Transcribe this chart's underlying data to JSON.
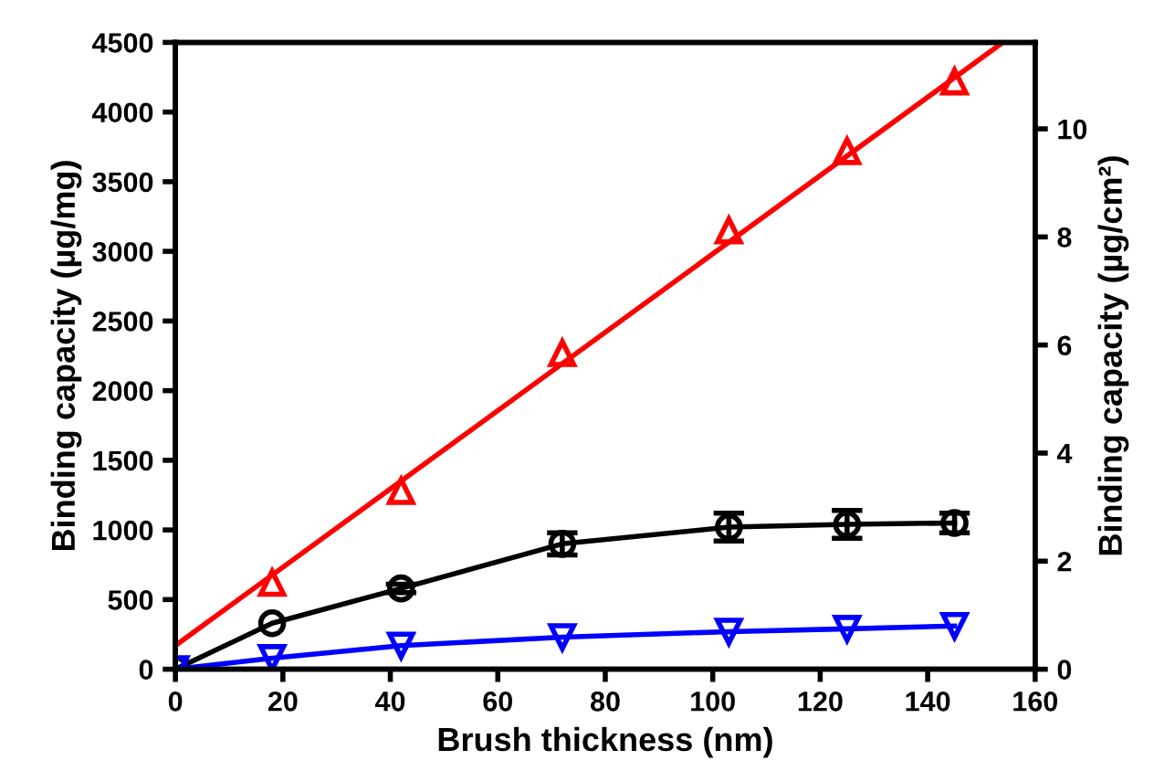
{
  "chart_data": {
    "type": "scatter",
    "xlabel": "Brush thickness (nm)",
    "ylabel": "Binding capacity (µg/mg)",
    "y2label": "Binding capacity (µg/cm²)",
    "xlim": [
      0,
      160
    ],
    "xticks": [
      0,
      20,
      40,
      60,
      80,
      100,
      120,
      140,
      160
    ],
    "ylim": [
      0,
      4500
    ],
    "yticks": [
      0,
      500,
      1000,
      1500,
      2000,
      2500,
      3000,
      3500,
      4000,
      4500
    ],
    "y2lim": [
      0,
      11.6
    ],
    "y2ticks": [
      0,
      2,
      4,
      6,
      8,
      10
    ],
    "grid": false,
    "legend": false,
    "series": [
      {
        "type": "line",
        "color": "#ff0000",
        "marker": "none",
        "x": [
          0,
          154
        ],
        "values": [
          170,
          4500
        ]
      },
      {
        "color": "#ff0000",
        "marker": "triangle",
        "x": [
          18,
          42,
          72,
          103,
          125,
          145
        ],
        "values": [
          620,
          1280,
          2270,
          3150,
          3720,
          4220
        ]
      },
      {
        "type": "line",
        "color": "#000000",
        "marker": "circle",
        "x": [
          0,
          18,
          42,
          72,
          103,
          125,
          145
        ],
        "values": [
          0,
          330,
          580,
          900,
          1020,
          1040,
          1050
        ],
        "errors": [
          null,
          null,
          30,
          80,
          100,
          100,
          70
        ]
      },
      {
        "type": "line",
        "color": "#0000ff",
        "marker": "triangle_down",
        "x": [
          0,
          18,
          42,
          72,
          103,
          125,
          145
        ],
        "values": [
          0,
          80,
          170,
          230,
          270,
          290,
          310
        ]
      }
    ]
  }
}
